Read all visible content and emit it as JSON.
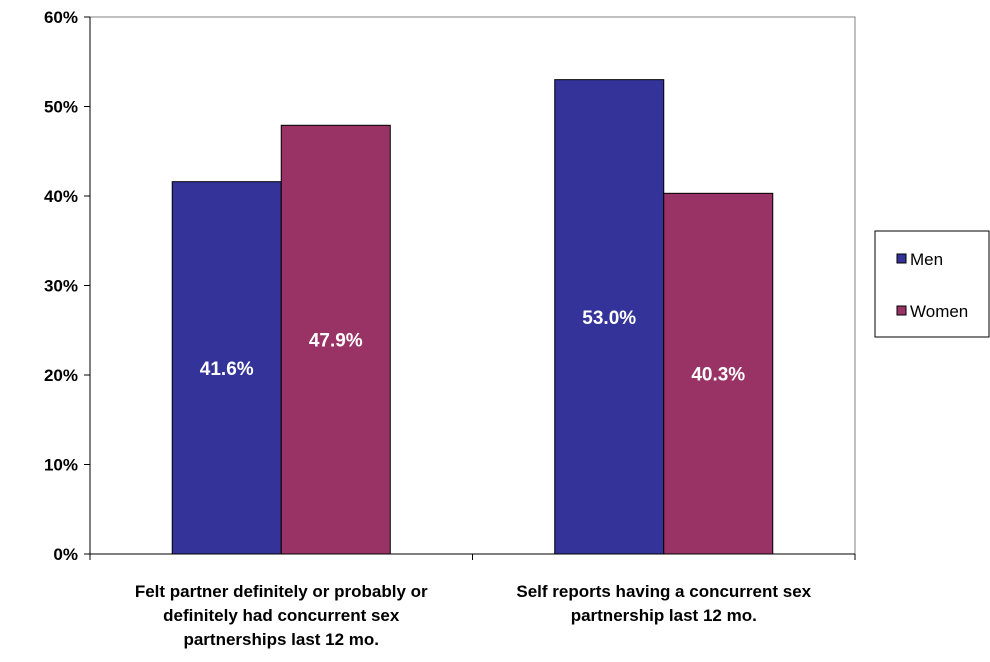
{
  "chart_data": {
    "type": "bar",
    "categories": [
      [
        "Felt partner definitely or probably or",
        "definitely had concurrent sex",
        "partnerships last 12 mo."
      ],
      [
        "Self reports having a concurrent sex",
        "partnership last 12 mo."
      ]
    ],
    "series": [
      {
        "name": "Men",
        "color": "#333399",
        "values": [
          41.6,
          53.0
        ],
        "labels": [
          "41.6%",
          "53.0%"
        ]
      },
      {
        "name": "Women",
        "color": "#993366",
        "values": [
          47.9,
          40.3
        ],
        "labels": [
          "47.9%",
          "40.3%"
        ]
      }
    ],
    "ylim": [
      0,
      60
    ],
    "yticks": [
      "0%",
      "10%",
      "20%",
      "30%",
      "40%",
      "50%",
      "60%"
    ],
    "ytick_values": [
      0,
      10,
      20,
      30,
      40,
      50,
      60
    ],
    "grid": false,
    "legend_position": "right",
    "title": "",
    "xlabel": "",
    "ylabel": ""
  }
}
